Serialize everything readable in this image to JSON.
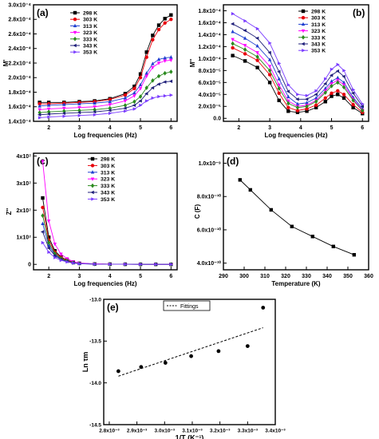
{
  "chart_data": [
    {
      "type": "scatter",
      "panel_label": "(a)",
      "xlabel": "Log frequencies (Hz)",
      "ylabel": "M'",
      "xlim": [
        1.5,
        6.2
      ],
      "ylim": [
        0.00014,
        0.0003
      ],
      "xticks": [
        "2",
        "3",
        "4",
        "5",
        "6"
      ],
      "yticks": [
        "1.4x10⁻⁴",
        "1.6x10⁻⁴",
        "1.8x10⁻⁴",
        "2.0x10⁻⁴",
        "2.2x10⁻⁴",
        "2.4x10⁻⁴",
        "2.6x10⁻⁴",
        "2.8x10⁻⁴",
        "3.0x10⁻⁴"
      ],
      "legend": "top-left",
      "series": [
        {
          "name": "298 K",
          "color": "#000000",
          "marker": "square",
          "x": [
            1.7,
            2.0,
            2.5,
            3.0,
            3.5,
            4.0,
            4.5,
            4.8,
            5.0,
            5.2,
            5.4,
            5.6,
            5.8,
            6.0
          ],
          "y": [
            0.000166,
            0.000166,
            0.000166,
            0.000167,
            0.000168,
            0.000171,
            0.000178,
            0.000188,
            0.000205,
            0.000235,
            0.000258,
            0.000272,
            0.000281,
            0.000286
          ]
        },
        {
          "name": "303 K",
          "color": "#e8000b",
          "marker": "circle",
          "x": [
            1.7,
            2.0,
            2.5,
            3.0,
            3.5,
            4.0,
            4.5,
            4.8,
            5.0,
            5.2,
            5.4,
            5.6,
            5.8,
            6.0
          ],
          "y": [
            0.000164,
            0.000164,
            0.000165,
            0.000166,
            0.000167,
            0.00017,
            0.000176,
            0.000185,
            0.0002,
            0.000228,
            0.000252,
            0.000266,
            0.000275,
            0.00028
          ]
        },
        {
          "name": "313 K",
          "color": "#1f3fd0",
          "marker": "triangle-up",
          "x": [
            1.7,
            2.0,
            2.5,
            3.0,
            3.5,
            4.0,
            4.5,
            4.8,
            5.0,
            5.2,
            5.4,
            5.6,
            5.8,
            6.0
          ],
          "y": [
            0.000161,
            0.000162,
            0.000163,
            0.000164,
            0.000165,
            0.000167,
            0.000172,
            0.000179,
            0.00019,
            0.000206,
            0.000219,
            0.000225,
            0.000227,
            0.000228
          ]
        },
        {
          "name": "323 K",
          "color": "#ff00ff",
          "marker": "triangle-down",
          "x": [
            1.7,
            2.0,
            2.5,
            3.0,
            3.5,
            4.0,
            4.5,
            4.8,
            5.0,
            5.2,
            5.4,
            5.6,
            5.8,
            6.0
          ],
          "y": [
            0.000156,
            0.000157,
            0.000158,
            0.000159,
            0.00016,
            0.000163,
            0.000168,
            0.000175,
            0.000185,
            0.000202,
            0.000214,
            0.00022,
            0.000223,
            0.000224
          ]
        },
        {
          "name": "333 K",
          "color": "#2a8a1e",
          "marker": "diamond",
          "x": [
            1.7,
            2.0,
            2.5,
            3.0,
            3.5,
            4.0,
            4.5,
            4.8,
            5.0,
            5.2,
            5.4,
            5.6,
            5.8,
            6.0
          ],
          "y": [
            0.000152,
            0.000153,
            0.000154,
            0.000155,
            0.000156,
            0.000158,
            0.000162,
            0.000167,
            0.000174,
            0.000186,
            0.000196,
            0.000202,
            0.000206,
            0.000208
          ]
        },
        {
          "name": "343 K",
          "color": "#1f1f7a",
          "marker": "triangle-left",
          "x": [
            1.7,
            2.0,
            2.5,
            3.0,
            3.5,
            4.0,
            4.5,
            4.8,
            5.0,
            5.2,
            5.4,
            5.6,
            5.8,
            6.0
          ],
          "y": [
            0.000149,
            0.00015,
            0.000151,
            0.000152,
            0.000153,
            0.000155,
            0.000158,
            0.000162,
            0.000168,
            0.000178,
            0.000186,
            0.000191,
            0.000194,
            0.000195
          ]
        },
        {
          "name": "353 K",
          "color": "#7a3cff",
          "marker": "triangle-right",
          "x": [
            1.7,
            2.0,
            2.5,
            3.0,
            3.5,
            4.0,
            4.5,
            4.8,
            5.0,
            5.2,
            5.4,
            5.6,
            5.8,
            6.0
          ],
          "y": [
            0.000145,
            0.000146,
            0.000147,
            0.000148,
            0.000149,
            0.000151,
            0.000154,
            0.000157,
            0.000162,
            0.000168,
            0.000172,
            0.000174,
            0.000175,
            0.000176
          ]
        }
      ]
    },
    {
      "type": "scatter",
      "panel_label": "(b)",
      "xlabel": "Log frequencies (Hz)",
      "ylabel": "M''",
      "xlim": [
        1.5,
        6.2
      ],
      "ylim": [
        -5e-06,
        0.00019
      ],
      "xticks": [
        "2",
        "3",
        "4",
        "5",
        "6"
      ],
      "yticks": [
        "0.0",
        "2.0x10⁻⁵",
        "4.0x10⁻⁵",
        "6.0x10⁻⁵",
        "8.0x10⁻⁵",
        "1.0x10⁻⁴",
        "1.2x10⁻⁴",
        "1.4x10⁻⁴",
        "1.6x10⁻⁴",
        "1.8x10⁻⁴"
      ],
      "legend": "top-right",
      "series": [
        {
          "name": "298 K",
          "color": "#000000",
          "marker": "square",
          "x": [
            1.8,
            2.2,
            2.6,
            3.0,
            3.3,
            3.6,
            3.9,
            4.2,
            4.5,
            4.8,
            5.0,
            5.2,
            5.4,
            5.7,
            6.0
          ],
          "y": [
            0.000105,
            9.6e-05,
            8.5e-05,
            6e-05,
            3e-05,
            1.2e-05,
            1e-05,
            1.2e-05,
            1.8e-05,
            2.8e-05,
            3.7e-05,
            4e-05,
            3.4e-05,
            1.8e-05,
            8e-06
          ]
        },
        {
          "name": "303 K",
          "color": "#e8000b",
          "marker": "circle",
          "x": [
            1.8,
            2.2,
            2.6,
            3.0,
            3.3,
            3.6,
            3.9,
            4.2,
            4.5,
            4.8,
            5.0,
            5.2,
            5.4,
            5.7,
            6.0
          ],
          "y": [
            0.000118,
            0.000108,
            9.7e-05,
            7.3e-05,
            4.2e-05,
            1.8e-05,
            1.3e-05,
            1.6e-05,
            2.2e-05,
            3.4e-05,
            4.2e-05,
            4.6e-05,
            4e-05,
            2.3e-05,
            1e-05
          ]
        },
        {
          "name": "313 K",
          "color": "#1f3fd0",
          "marker": "triangle-up",
          "x": [
            1.8,
            2.2,
            2.6,
            3.0,
            3.3,
            3.6,
            3.9,
            4.2,
            4.5,
            4.8,
            5.0,
            5.2,
            5.4,
            5.7,
            6.0
          ],
          "y": [
            0.000145,
            0.000134,
            0.000121,
            9.8e-05,
            6.6e-05,
            3.6e-05,
            2.4e-05,
            2.6e-05,
            3.4e-05,
            5e-05,
            6.2e-05,
            6.8e-05,
            6e-05,
            3.5e-05,
            1.6e-05
          ]
        },
        {
          "name": "323 K",
          "color": "#ff00ff",
          "marker": "triangle-down",
          "x": [
            1.8,
            2.2,
            2.6,
            3.0,
            3.3,
            3.6,
            3.9,
            4.2,
            4.5,
            4.8,
            5.0,
            5.2,
            5.4,
            5.7,
            6.0
          ],
          "y": [
            0.000132,
            0.000122,
            0.00011,
            8.7e-05,
            5.6e-05,
            2.9e-05,
            2e-05,
            2.2e-05,
            3e-05,
            4.6e-05,
            5.8e-05,
            6.4e-05,
            5.6e-05,
            3.2e-05,
            1.4e-05
          ]
        },
        {
          "name": "333 K",
          "color": "#2a8a1e",
          "marker": "diamond",
          "x": [
            1.8,
            2.2,
            2.6,
            3.0,
            3.3,
            3.6,
            3.9,
            4.2,
            4.5,
            4.8,
            5.0,
            5.2,
            5.4,
            5.7,
            6.0
          ],
          "y": [
            0.000125,
            0.000115,
            0.000103,
            8e-05,
            5e-05,
            2.5e-05,
            1.8e-05,
            2e-05,
            2.8e-05,
            4.3e-05,
            5.4e-05,
            6e-05,
            5.2e-05,
            3e-05,
            1.3e-05
          ]
        },
        {
          "name": "343 K",
          "color": "#1f1f7a",
          "marker": "triangle-left",
          "x": [
            1.8,
            2.2,
            2.6,
            3.0,
            3.3,
            3.6,
            3.9,
            4.2,
            4.5,
            4.8,
            5.0,
            5.2,
            5.4,
            5.7,
            6.0
          ],
          "y": [
            0.000158,
            0.000147,
            0.000134,
            0.00011,
            7.8e-05,
            4.5e-05,
            3.2e-05,
            3.2e-05,
            4e-05,
            5.8e-05,
            7.2e-05,
            7.9e-05,
            7e-05,
            4.2e-05,
            2e-05
          ]
        },
        {
          "name": "353 K",
          "color": "#7a3cff",
          "marker": "triangle-right",
          "x": [
            1.8,
            2.2,
            2.6,
            3.0,
            3.3,
            3.6,
            3.9,
            4.2,
            4.5,
            4.8,
            5.0,
            5.2,
            5.4,
            5.7,
            6.0
          ],
          "y": [
            0.000175,
            0.000163,
            0.00015,
            0.000126,
            9.2e-05,
            5.6e-05,
            4e-05,
            3.8e-05,
            4.6e-05,
            6.6e-05,
            8.2e-05,
            9e-05,
            8e-05,
            4.8e-05,
            2.4e-05
          ]
        }
      ]
    },
    {
      "type": "scatter",
      "panel_label": "(c)",
      "xlabel": "Log frequencies (Hz)",
      "ylabel": "Z''",
      "xlim": [
        1.5,
        6.2
      ],
      "ylim": [
        -2000000,
        41000000
      ],
      "xticks": [
        "2",
        "3",
        "4",
        "5",
        "6"
      ],
      "yticks": [
        "0",
        "1x10⁷",
        "2x10⁷",
        "3x10⁷",
        "4x10⁷"
      ],
      "legend": "top-right",
      "series": [
        {
          "name": "298 K",
          "color": "#000000",
          "marker": "square",
          "x": [
            1.8,
            2.0,
            2.2,
            2.4,
            2.6,
            2.8,
            3.0,
            3.5,
            4.0,
            4.5,
            5.0,
            5.5,
            6.0
          ],
          "y": [
            24500000,
            10000000,
            5000000,
            2700000,
            1600000,
            800000,
            400000,
            150000,
            80000,
            50000,
            30000,
            20000,
            10000
          ]
        },
        {
          "name": "303 K",
          "color": "#e8000b",
          "marker": "circle",
          "x": [
            1.8,
            2.0,
            2.2,
            2.4,
            2.6,
            2.8,
            3.0,
            3.5,
            4.0,
            4.5,
            5.0,
            5.5,
            6.0
          ],
          "y": [
            21000000,
            9000000,
            4500000,
            2500000,
            1500000,
            750000,
            380000,
            140000,
            75000,
            45000,
            28000,
            18000,
            9000
          ]
        },
        {
          "name": "313 K",
          "color": "#1f3fd0",
          "marker": "triangle-up",
          "x": [
            1.8,
            2.0,
            2.2,
            2.4,
            2.6,
            2.8,
            3.0,
            3.5,
            4.0,
            4.5,
            5.0,
            5.5,
            6.0
          ],
          "y": [
            15000000,
            7000000,
            3600000,
            2000000,
            1200000,
            600000,
            300000,
            110000,
            60000,
            38000,
            22000,
            14000,
            7000
          ]
        },
        {
          "name": "323 K",
          "color": "#ff00ff",
          "marker": "triangle-down",
          "x": [
            1.8,
            2.0,
            2.2,
            2.4,
            2.6,
            2.8,
            3.0,
            3.5,
            4.0,
            4.5,
            5.0,
            5.5,
            6.0
          ],
          "y": [
            38000000,
            16000000,
            7500000,
            3800000,
            2100000,
            1000000,
            500000,
            180000,
            90000,
            55000,
            34000,
            22000,
            11000
          ]
        },
        {
          "name": "333 K",
          "color": "#2a8a1e",
          "marker": "diamond",
          "x": [
            1.8,
            2.0,
            2.2,
            2.4,
            2.6,
            2.8,
            3.0,
            3.5,
            4.0,
            4.5,
            5.0,
            5.5,
            6.0
          ],
          "y": [
            18000000,
            8000000,
            4000000,
            2200000,
            1300000,
            650000,
            330000,
            120000,
            65000,
            40000,
            25000,
            16000,
            8000
          ]
        },
        {
          "name": "343 K",
          "color": "#1f1f7a",
          "marker": "triangle-left",
          "x": [
            1.8,
            2.0,
            2.2,
            2.4,
            2.6,
            2.8,
            3.0,
            3.5,
            4.0,
            4.5,
            5.0,
            5.5,
            6.0
          ],
          "y": [
            12000000,
            6000000,
            3200000,
            1800000,
            1100000,
            550000,
            280000,
            100000,
            55000,
            35000,
            20000,
            13000,
            6000
          ]
        },
        {
          "name": "353 K",
          "color": "#7a3cff",
          "marker": "triangle-right",
          "x": [
            1.8,
            2.0,
            2.2,
            2.4,
            2.6,
            2.8,
            3.0,
            3.5,
            4.0,
            4.5,
            5.0,
            5.5,
            6.0
          ],
          "y": [
            8000000,
            4500000,
            2500000,
            1500000,
            900000,
            450000,
            230000,
            90000,
            50000,
            30000,
            18000,
            11000,
            5000
          ]
        }
      ]
    },
    {
      "type": "line",
      "panel_label": "(d)",
      "xlabel": "Temperature (K)",
      "ylabel": "C (F)",
      "xlim": [
        290,
        360
      ],
      "ylim": [
        3.6e-10,
        1.06e-09
      ],
      "xticks": [
        "290",
        "300",
        "310",
        "320",
        "330",
        "340",
        "350",
        "360"
      ],
      "yticks": [
        "4.0x10⁻¹⁰",
        "6.0x10⁻¹⁰",
        "8.0x10⁻¹⁰",
        "1.0x10⁻⁹"
      ],
      "series": [
        {
          "color": "#000000",
          "marker": "square",
          "x": [
            298,
            303,
            313,
            323,
            333,
            343,
            353
          ],
          "y": [
            9e-10,
            8.4e-10,
            7.2e-10,
            6.2e-10,
            5.6e-10,
            5e-10,
            4.5e-10
          ]
        }
      ]
    },
    {
      "type": "scatter",
      "panel_label": "(e)",
      "xlabel": "1/T (K⁻¹)",
      "ylabel": "Ln τm",
      "xlim": [
        0.00278,
        0.0034
      ],
      "ylim": [
        -14.5,
        -13.0
      ],
      "xticks": [
        "2.8x10⁻³",
        "2.9x10⁻³",
        "3.0x10⁻³",
        "3.1x10⁻³",
        "3.2x10⁻³",
        "3.3x10⁻³",
        "3.4x10⁻³"
      ],
      "yticks": [
        "-14.5",
        "-14.0",
        "-13.5",
        "-13.0"
      ],
      "legend": "top-center",
      "legend_entries": [
        "Fittings"
      ],
      "points": {
        "color": "#000000",
        "marker": "circle",
        "x": [
          0.002833,
          0.002915,
          0.003003,
          0.003096,
          0.003195,
          0.0033,
          0.003356
        ],
        "y": [
          -13.86,
          -13.81,
          -13.76,
          -13.68,
          -13.62,
          -13.56,
          -13.1
        ]
      },
      "fit": {
        "style": "dashed",
        "x": [
          0.002833,
          0.003356
        ],
        "y": [
          -13.92,
          -13.34
        ]
      }
    }
  ]
}
